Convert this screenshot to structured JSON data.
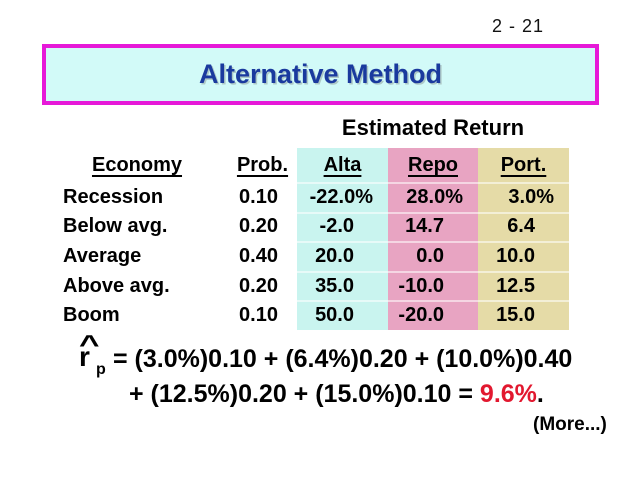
{
  "slide": {
    "number": "2 - 21",
    "title": "Alternative Method",
    "footer_note": "(More...)"
  },
  "table": {
    "group_header": "Estimated Return",
    "columns": [
      "Economy",
      "Prob.",
      "Alta",
      "Repo",
      "Port."
    ],
    "rows": [
      {
        "economy": "Recession",
        "prob": "0.10",
        "alta": "-22.0%",
        "repo": "28.0%",
        "port": "3.0%"
      },
      {
        "economy": "Below avg.",
        "prob": "0.20",
        "alta": "-2.0",
        "repo": "14.7",
        "port": "6.4"
      },
      {
        "economy": "Average",
        "prob": "0.40",
        "alta": "20.0",
        "repo": "0.0",
        "port": "10.0"
      },
      {
        "economy": "Above avg.",
        "prob": "0.20",
        "alta": "35.0",
        "repo": "-10.0",
        "port": "12.5"
      },
      {
        "economy": "Boom",
        "prob": "0.10",
        "alta": "50.0",
        "repo": "-20.0",
        "port": "15.0"
      }
    ]
  },
  "chart_data": {
    "type": "table",
    "title": "Estimated Return",
    "categories": [
      "Recession",
      "Below avg.",
      "Average",
      "Above avg.",
      "Boom"
    ],
    "series": [
      {
        "name": "Prob.",
        "values": [
          0.1,
          0.2,
          0.4,
          0.2,
          0.1
        ]
      },
      {
        "name": "Alta",
        "values": [
          -22.0,
          -2.0,
          20.0,
          35.0,
          50.0
        ]
      },
      {
        "name": "Repo",
        "values": [
          28.0,
          14.7,
          0.0,
          -10.0,
          -20.0
        ]
      },
      {
        "name": "Port.",
        "values": [
          3.0,
          6.4,
          10.0,
          12.5,
          15.0
        ]
      }
    ]
  },
  "formula": {
    "hat": "^",
    "symbol": "r",
    "subscript": "p",
    "line1": "= (3.0%)0.10 + (6.4%)0.20 + (10.0%)0.40",
    "line2_prefix": "+ (12.5%)0.20 + (15.0%)0.10 = ",
    "line2_result": "9.6%",
    "line2_suffix": "."
  },
  "colors": {
    "title_text": "#1A3A9E",
    "title_fill": "#D2FAF8",
    "title_border": "#E619D8",
    "alta_column": "#C9F4EF",
    "repo_column": "#E8A4C2",
    "port_column": "#E5DBA7",
    "result_highlight": "#E2182F",
    "body_text": "#000000"
  }
}
